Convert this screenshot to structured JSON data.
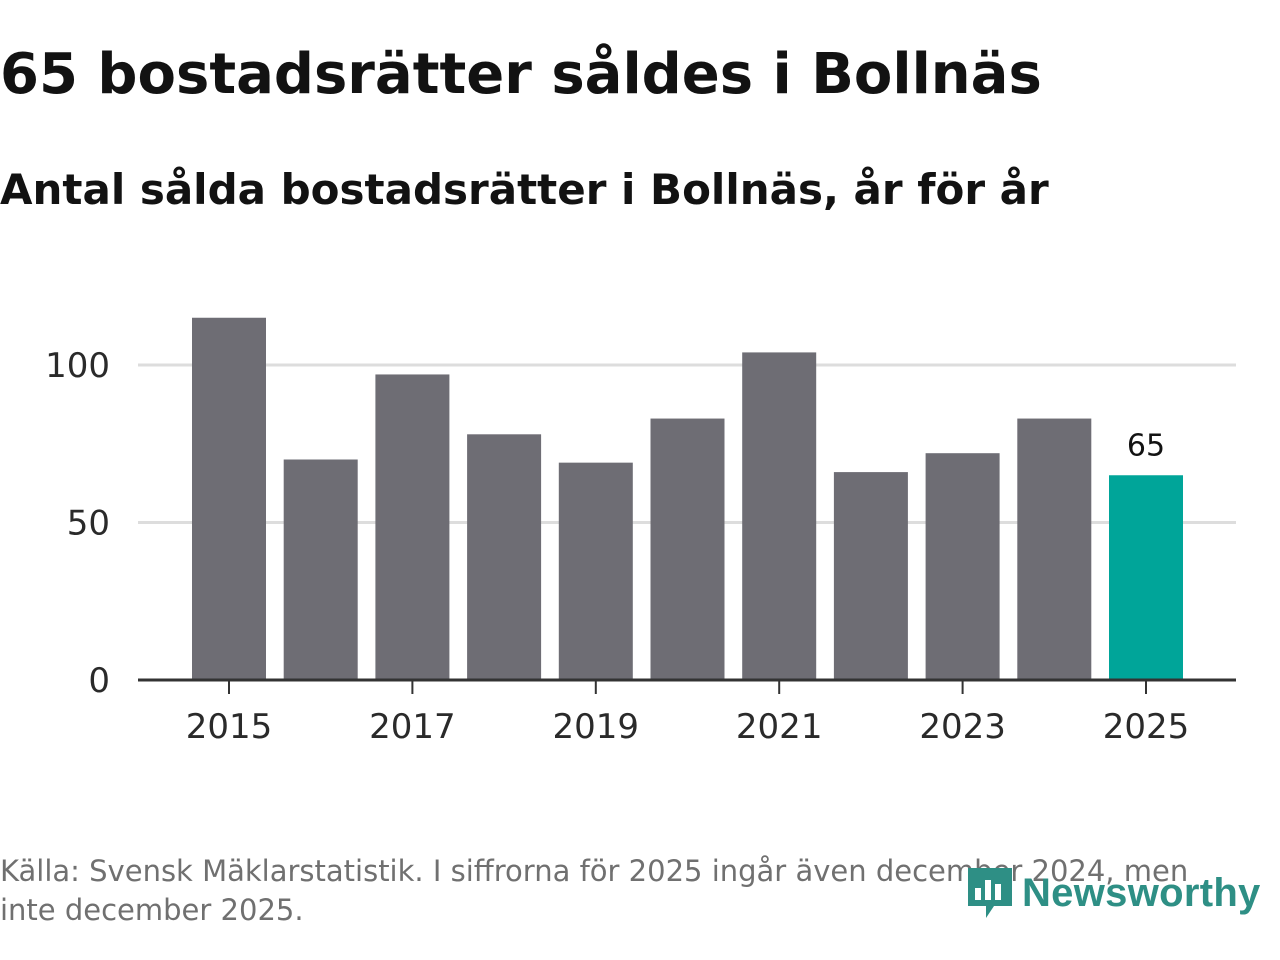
{
  "header": {
    "title": "65 bostadsrätter såldes i Bollnäs",
    "subtitle": "Antal sålda bostadsrätter i Bollnäs, år för år"
  },
  "footer": {
    "source": "Källa: Svensk Mäklarstatistik. I siffrorna för 2025 ingår även december 2024, men inte december 2025.",
    "brand": "Newsworthy"
  },
  "colors": {
    "bar": "#6e6d74",
    "highlight": "#00a599",
    "grid": "#dddddd",
    "axis": "#333333",
    "brand": "#2e8f85"
  },
  "chart_data": {
    "type": "bar",
    "title": "65 bostadsrätter såldes i Bollnäs",
    "subtitle": "Antal sålda bostadsrätter i Bollnäs, år för år",
    "xlabel": "",
    "ylabel": "",
    "categories": [
      "2015",
      "2016",
      "2017",
      "2018",
      "2019",
      "2020",
      "2021",
      "2022",
      "2023",
      "2024",
      "2025"
    ],
    "values": [
      115,
      70,
      97,
      78,
      69,
      83,
      104,
      66,
      72,
      83,
      65
    ],
    "highlight_index": 10,
    "data_labels": [
      {
        "index": 10,
        "text": "65"
      }
    ],
    "xticks": [
      "2015",
      "2017",
      "2019",
      "2021",
      "2023",
      "2025"
    ],
    "yticks": [
      0,
      50,
      100
    ],
    "ylim": [
      0,
      120
    ],
    "grid": true
  }
}
